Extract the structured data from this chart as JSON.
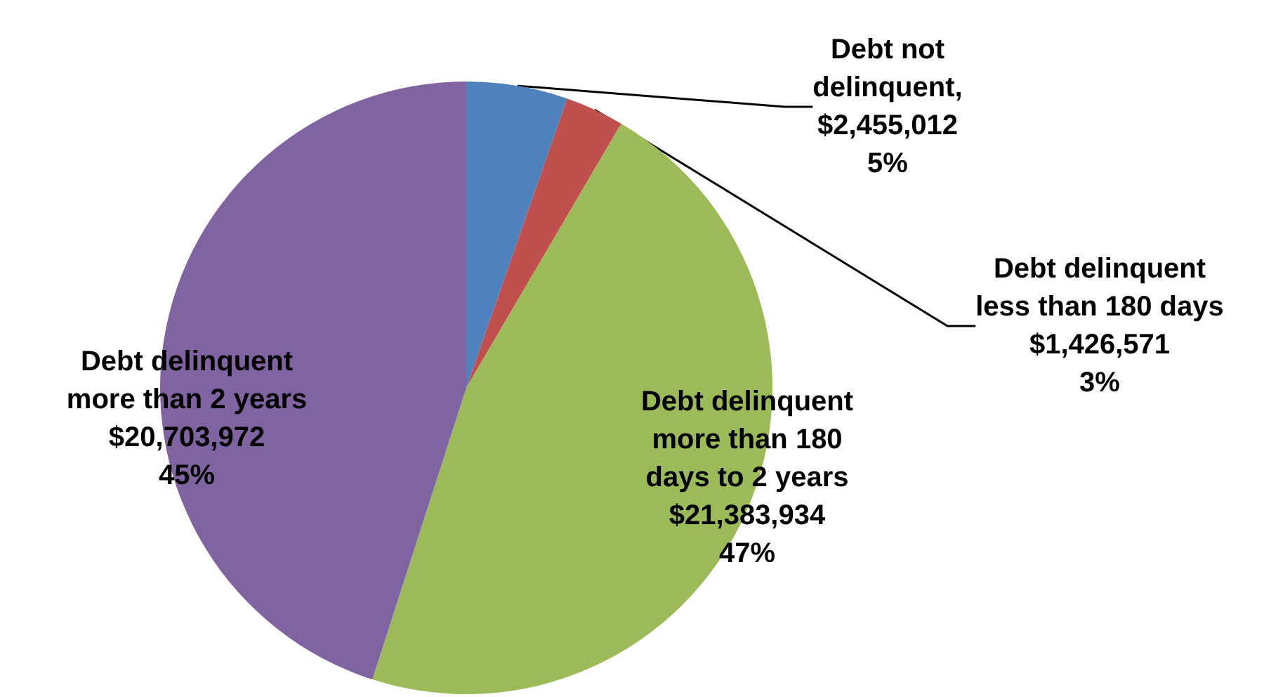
{
  "chart_data": {
    "type": "pie",
    "categories": [
      "Debt not delinquent",
      "Debt delinquent less than 180 days",
      "Debt delinquent more than 180 days to 2 years",
      "Debt delinquent more than 2 years"
    ],
    "values": [
      2455012,
      1426571,
      21383934,
      20703972
    ],
    "colors": [
      "#4f81bd",
      "#c0504d",
      "#9bbb59",
      "#8064a2"
    ],
    "value_labels": [
      ",\n$2,455,012\n5%",
      "$1,426,571\n3%",
      "$21,383,934\n47%",
      "$20,703,972\n45%"
    ]
  }
}
